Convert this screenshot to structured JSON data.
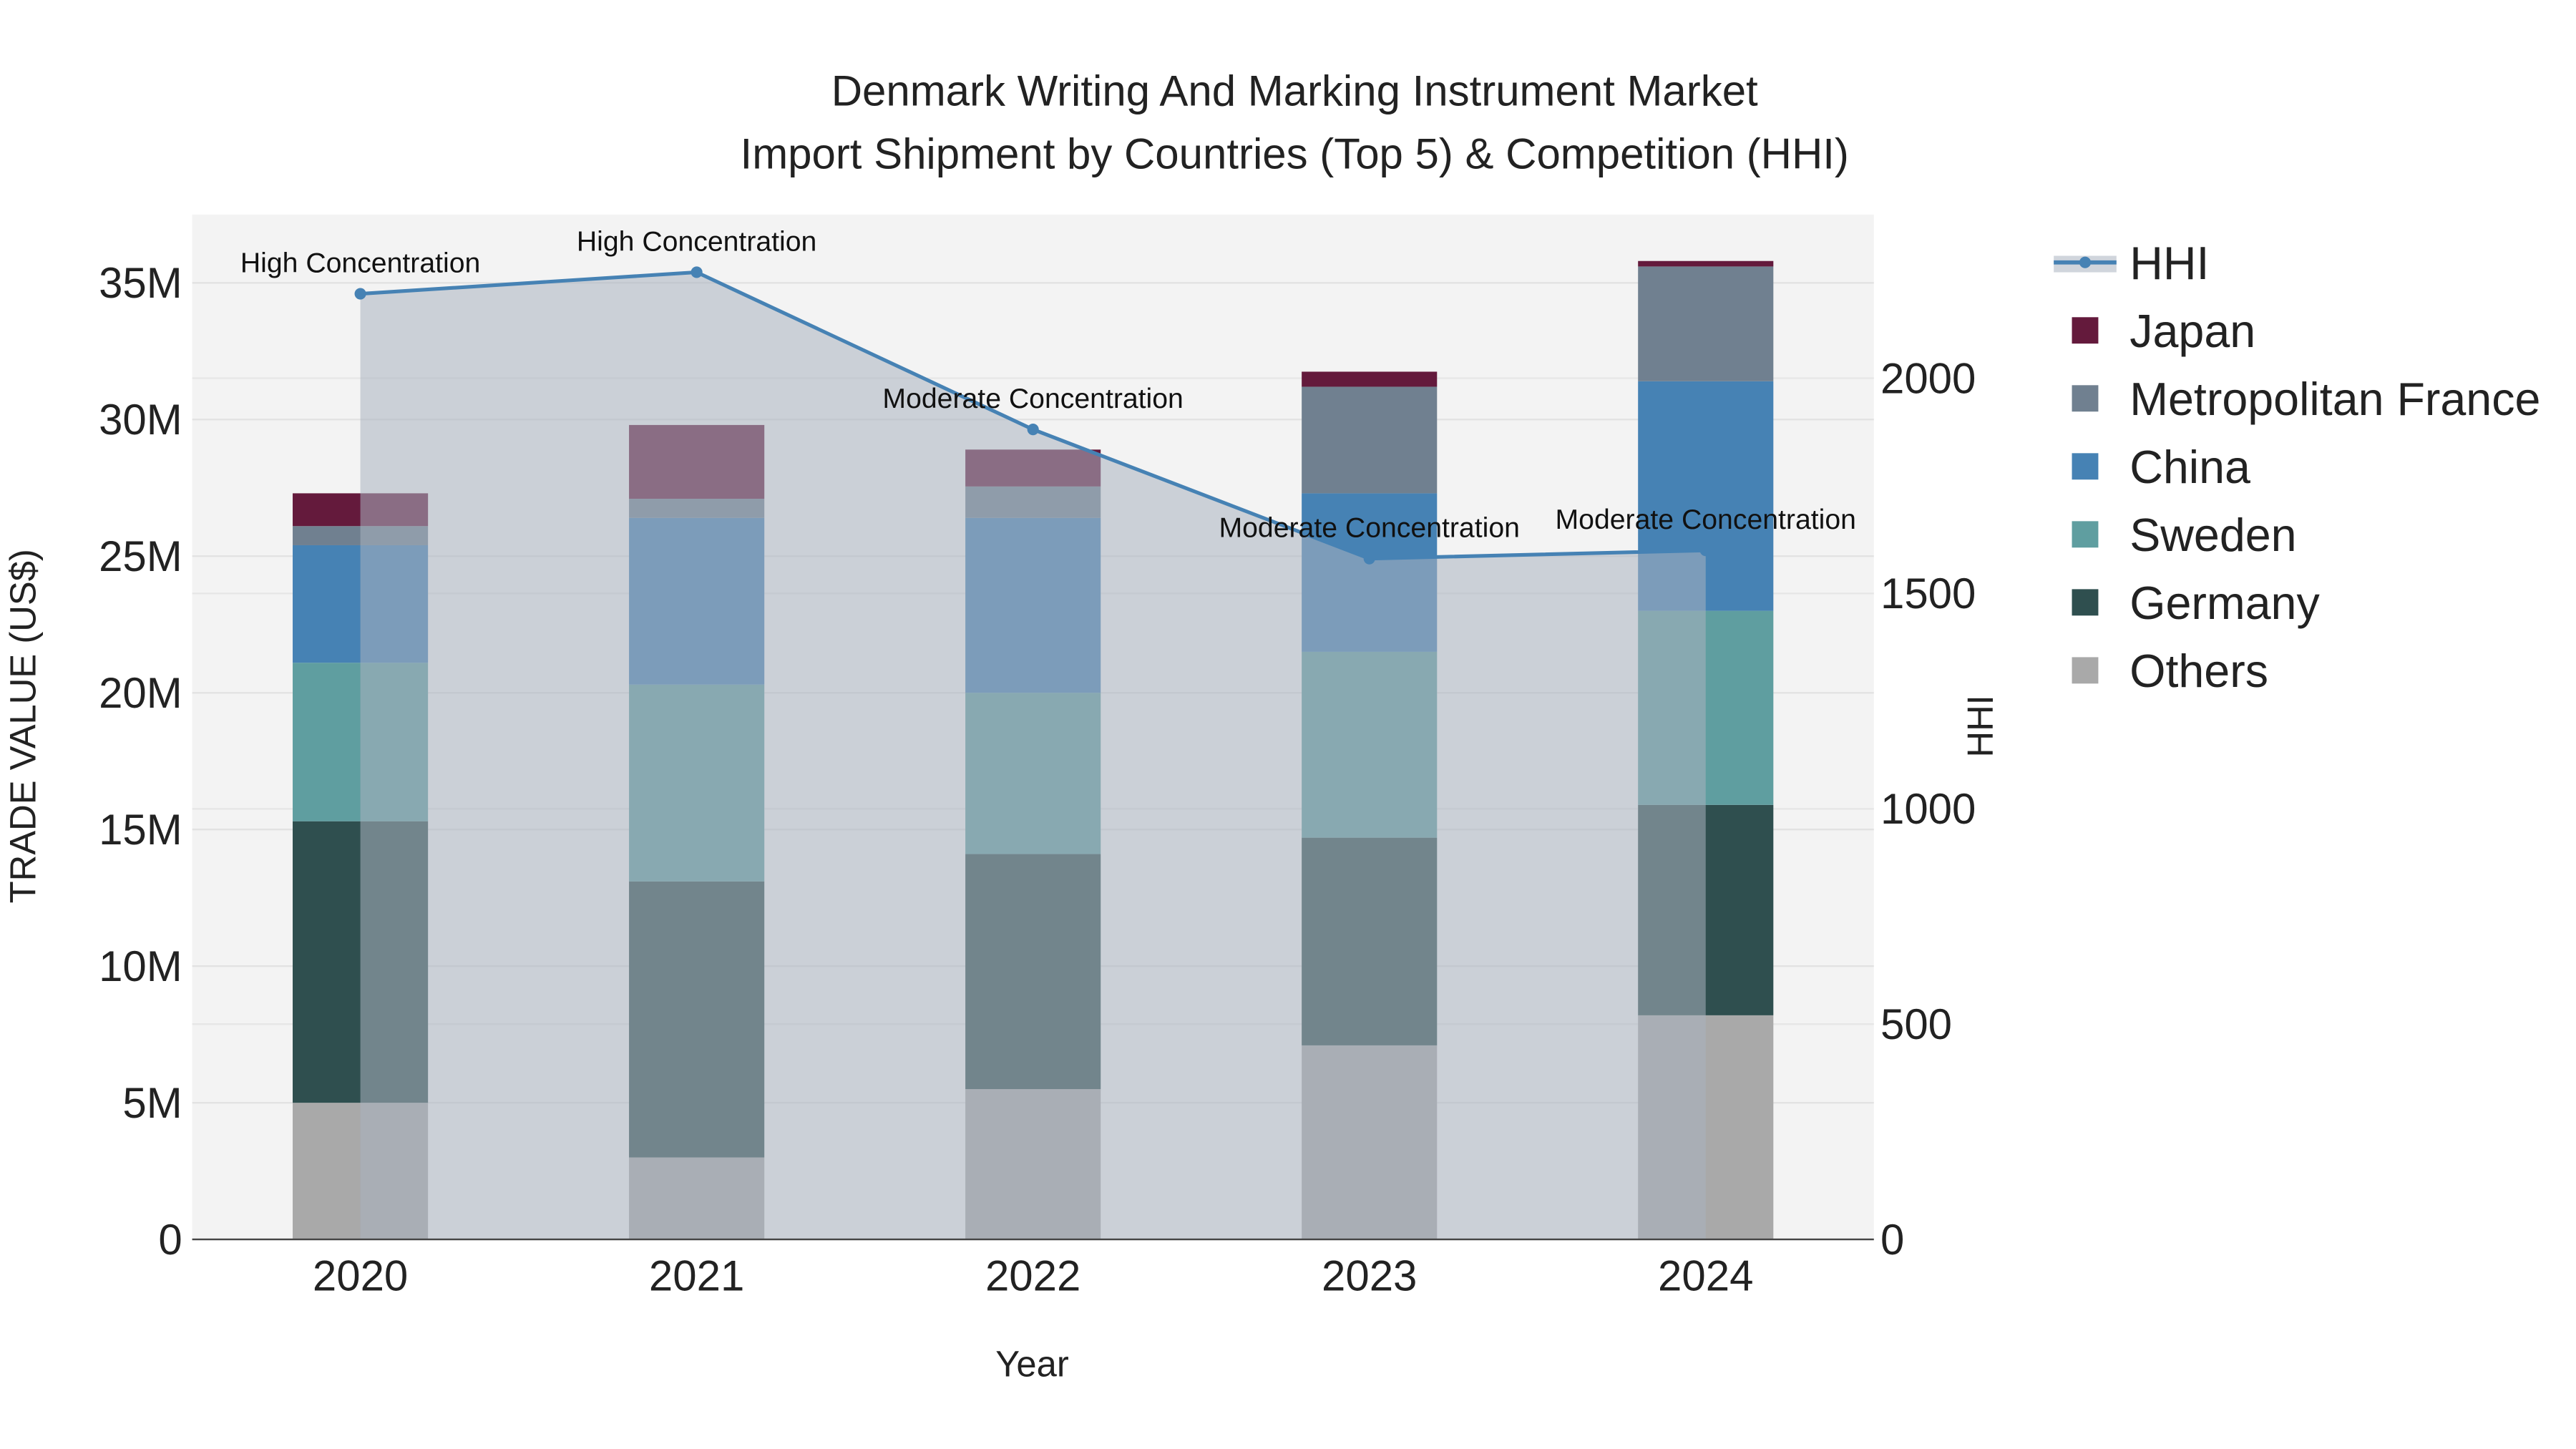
{
  "chart_data": {
    "type": "bar",
    "stacked": true,
    "title": "Denmark Writing And Marking Instrument Market",
    "subtitle": "Import Shipment by Countries (Top 5) & Competition (HHI)",
    "xlabel": "Year",
    "ylabel": "TRADE VALUE (US$)",
    "y2label": "HHI",
    "categories": [
      "2020",
      "2021",
      "2022",
      "2023",
      "2024"
    ],
    "ylim": [
      0,
      37500000
    ],
    "y2lim": [
      0,
      2380
    ],
    "yticks": [
      0,
      5000000,
      10000000,
      15000000,
      20000000,
      25000000,
      30000000,
      35000000
    ],
    "ytick_labels": [
      "0",
      "5M",
      "10M",
      "15M",
      "20M",
      "25M",
      "30M",
      "35M"
    ],
    "y2ticks": [
      0,
      500,
      1000,
      1500,
      2000
    ],
    "y2tick_labels": [
      "0",
      "500",
      "1000",
      "1500",
      "2000"
    ],
    "grid": true,
    "legend_position": "right",
    "series": [
      {
        "name": "Others",
        "color": "#a9a9a9",
        "values": [
          5000000,
          3000000,
          5500000,
          7100000,
          8200000
        ]
      },
      {
        "name": "Germany",
        "color": "#2f4f4f",
        "values": [
          10300000,
          10100000,
          8600000,
          7600000,
          7700000
        ]
      },
      {
        "name": "Sweden",
        "color": "#5f9ea0",
        "values": [
          5800000,
          7200000,
          5900000,
          6800000,
          7100000
        ]
      },
      {
        "name": "China",
        "color": "#4682b4",
        "values": [
          4300000,
          6100000,
          6400000,
          5800000,
          8400000
        ]
      },
      {
        "name": "Metropolitan France",
        "color": "#708090",
        "values": [
          700000,
          700000,
          1150000,
          3900000,
          4200000
        ]
      },
      {
        "name": "Japan",
        "color": "#641a3c",
        "values": [
          1200000,
          2700000,
          1350000,
          550000,
          200000
        ]
      }
    ],
    "hhi": {
      "name": "HHI",
      "color": "#4682b4",
      "values": [
        2196,
        2246,
        1881,
        1581,
        1600
      ],
      "annotations": [
        "High Concentration",
        "High Concentration",
        "Moderate Concentration",
        "Moderate Concentration",
        "Moderate Concentration"
      ]
    },
    "legend_order": [
      "HHI",
      "Japan",
      "Metropolitan France",
      "China",
      "Sweden",
      "Germany",
      "Others"
    ]
  }
}
